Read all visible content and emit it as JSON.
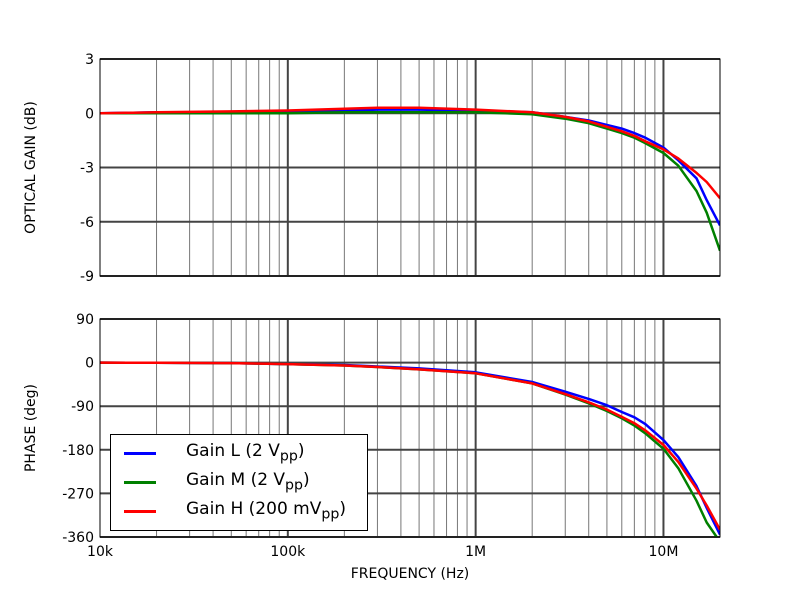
{
  "chart_data": [
    {
      "type": "line",
      "xscale": "log",
      "xlim": [
        10000,
        20000000
      ],
      "ylim": [
        -9,
        3
      ],
      "ylabel": "OPTICAL GAIN (dB)",
      "yticks": [
        "3",
        "0",
        "-3",
        "-6",
        "-9"
      ],
      "ytick_values": [
        3,
        0,
        -3,
        -6,
        -9
      ],
      "grid": true,
      "x": [
        10000,
        20000,
        50000,
        100000,
        200000,
        300000,
        500000,
        1000000,
        2000000,
        3000000,
        4000000,
        5000000,
        6000000,
        7000000,
        8000000,
        10000000,
        12000000,
        15000000,
        17000000,
        20000000
      ],
      "series": [
        {
          "name": "Gain L (2 Vpp)",
          "color": "#0000ff",
          "values": [
            0,
            0.05,
            0.05,
            0.05,
            0.15,
            0.2,
            0.2,
            0.15,
            0.05,
            -0.2,
            -0.4,
            -0.65,
            -0.85,
            -1.1,
            -1.35,
            -1.9,
            -2.6,
            -3.6,
            -4.8,
            -6.2
          ]
        },
        {
          "name": "Gain M (2 Vpp)",
          "color": "#008000",
          "values": [
            0,
            0,
            0,
            0,
            0.05,
            0.05,
            0.05,
            0.05,
            -0.05,
            -0.3,
            -0.55,
            -0.85,
            -1.1,
            -1.35,
            -1.65,
            -2.2,
            -2.9,
            -4.3,
            -5.5,
            -7.6
          ]
        },
        {
          "name": "Gain H (200 mVpp)",
          "color": "#ff0000",
          "values": [
            0,
            0.05,
            0.1,
            0.15,
            0.25,
            0.3,
            0.3,
            0.2,
            0.05,
            -0.2,
            -0.45,
            -0.75,
            -1.0,
            -1.25,
            -1.55,
            -2.0,
            -2.5,
            -3.3,
            -3.8,
            -4.7
          ]
        }
      ]
    },
    {
      "type": "line",
      "xscale": "log",
      "xlim": [
        10000,
        20000000
      ],
      "ylim": [
        -360,
        90
      ],
      "xlabel": "FREQUENCY (Hz)",
      "ylabel": "PHASE (deg)",
      "xticks": [
        "10k",
        "100k",
        "1M",
        "10M"
      ],
      "xtick_values": [
        10000,
        100000,
        1000000,
        10000000
      ],
      "yticks": [
        "90",
        "0",
        "-90",
        "-180",
        "-270",
        "-360"
      ],
      "ytick_values": [
        90,
        0,
        -90,
        -180,
        -270,
        -360
      ],
      "grid": true,
      "legend": "lower-left",
      "x": [
        10000,
        20000,
        50000,
        100000,
        200000,
        300000,
        500000,
        1000000,
        2000000,
        3000000,
        4000000,
        5000000,
        6000000,
        7000000,
        8000000,
        10000000,
        12000000,
        15000000,
        17000000,
        20000000
      ],
      "series": [
        {
          "name": "Gain L (2 Vpp)",
          "color": "#0000ff",
          "values": [
            0,
            -0.5,
            -1,
            -3,
            -5,
            -8,
            -12,
            -20,
            -40,
            -60,
            -75,
            -88,
            -102,
            -113,
            -127,
            -160,
            -195,
            -255,
            -300,
            -355
          ]
        },
        {
          "name": "Gain M (2 Vpp)",
          "color": "#008000",
          "values": [
            0,
            -0.5,
            -1,
            -3,
            -6,
            -9,
            -14,
            -22,
            -43,
            -66,
            -84,
            -100,
            -115,
            -130,
            -146,
            -178,
            -218,
            -285,
            -330,
            -370
          ]
        },
        {
          "name": "Gain H (200 mVpp)",
          "color": "#ff0000",
          "values": [
            0,
            -0.5,
            -1,
            -3,
            -6,
            -9,
            -14,
            -22,
            -43,
            -65,
            -82,
            -97,
            -112,
            -125,
            -140,
            -170,
            -205,
            -260,
            -295,
            -345
          ]
        }
      ]
    }
  ],
  "legend": {
    "items": [
      {
        "prefix": "Gain L (2 V",
        "sub": "pp",
        "suffix": ")",
        "color": "#0000ff"
      },
      {
        "prefix": "Gain M (2 V",
        "sub": "pp",
        "suffix": ")",
        "color": "#008000"
      },
      {
        "prefix": "Gain H (200 mV",
        "sub": "pp",
        "suffix": ")",
        "color": "#ff0000"
      }
    ]
  }
}
